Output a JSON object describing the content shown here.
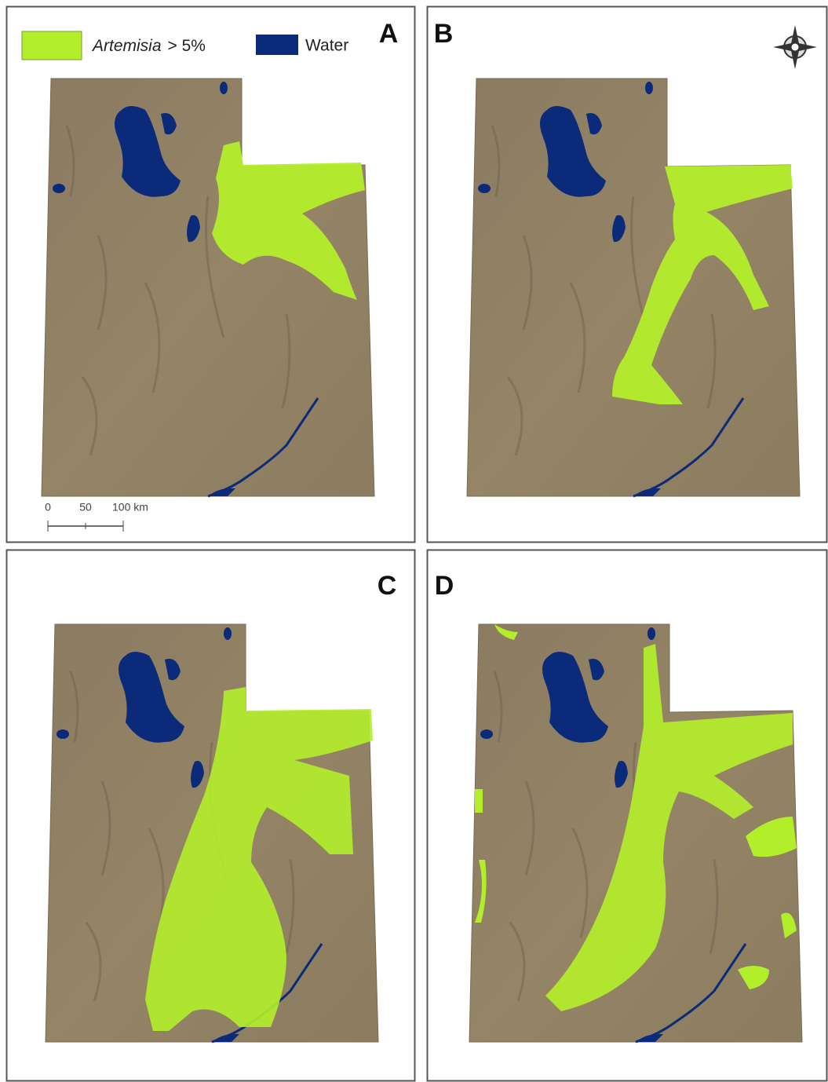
{
  "panels": [
    {
      "label": "A"
    },
    {
      "label": "B"
    },
    {
      "label": "C"
    },
    {
      "label": "D"
    }
  ],
  "legend": {
    "artemisia": "Artemisia",
    "threshold": "> 5%",
    "water": "Water"
  },
  "scale_bar": {
    "ticks": [
      "0",
      "50",
      "100 km"
    ]
  }
}
